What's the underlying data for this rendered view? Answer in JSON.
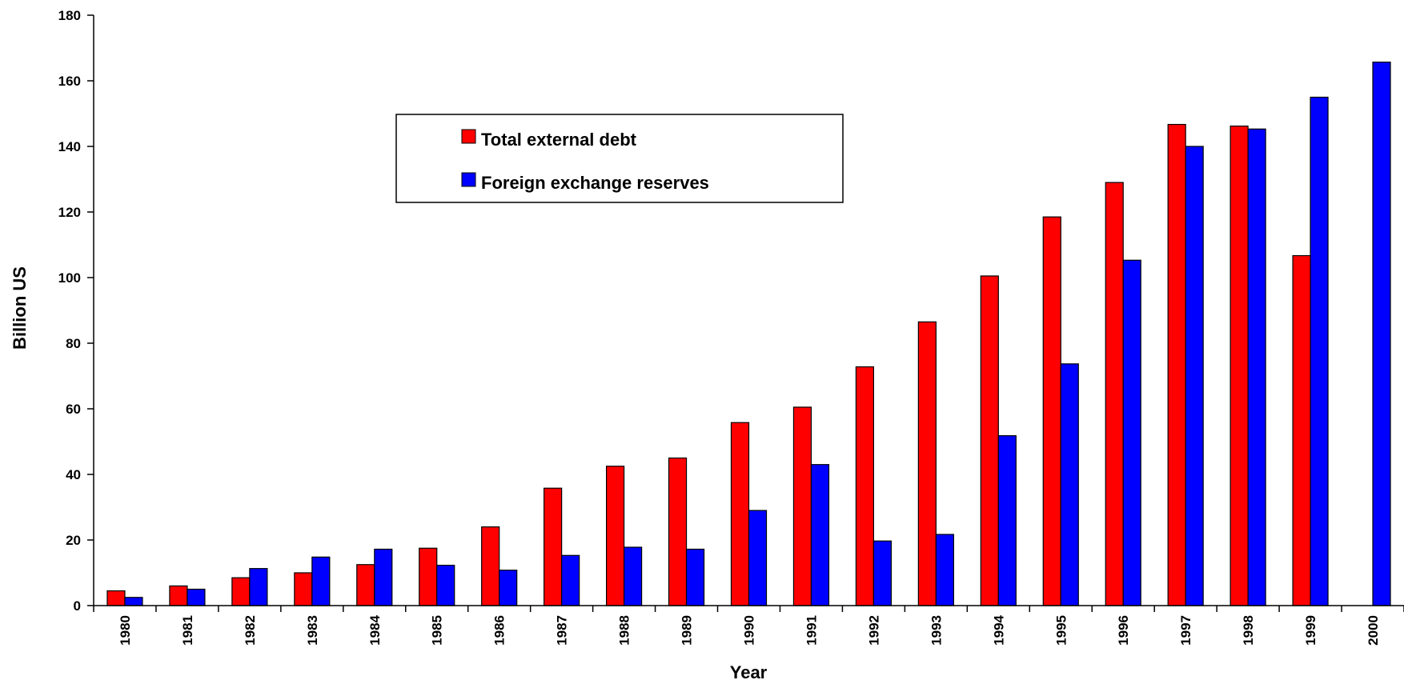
{
  "chart_data": {
    "type": "bar",
    "categories": [
      "1980",
      "1981",
      "1982",
      "1983",
      "1984",
      "1985",
      "1986",
      "1987",
      "1988",
      "1989",
      "1990",
      "1991",
      "1992",
      "1993",
      "1994",
      "1995",
      "1996",
      "1997",
      "1998",
      "1999",
      "2000"
    ],
    "series": [
      {
        "name": "Total external debt",
        "color": "#ff0000",
        "values": [
          4.5,
          6.0,
          8.5,
          10.0,
          12.5,
          17.5,
          24.0,
          35.8,
          42.5,
          45.0,
          55.8,
          60.5,
          72.8,
          86.5,
          100.5,
          118.5,
          129.0,
          146.7,
          146.2,
          106.7,
          null
        ]
      },
      {
        "name": "Foreign exchange reserves",
        "color": "#0000ff",
        "values": [
          2.5,
          5.0,
          11.3,
          14.8,
          17.2,
          12.3,
          10.8,
          15.3,
          17.8,
          17.2,
          29.0,
          43.0,
          19.7,
          21.7,
          51.8,
          73.7,
          105.3,
          140.0,
          145.3,
          155.0,
          165.7
        ]
      }
    ],
    "xlabel": "Year",
    "ylabel": "Billion US",
    "ylim": [
      0,
      180
    ],
    "yticks": [
      "0",
      "20",
      "40",
      "60",
      "80",
      "100",
      "120",
      "140",
      "160",
      "180"
    ],
    "grid": false,
    "legend_position": "top-center"
  }
}
